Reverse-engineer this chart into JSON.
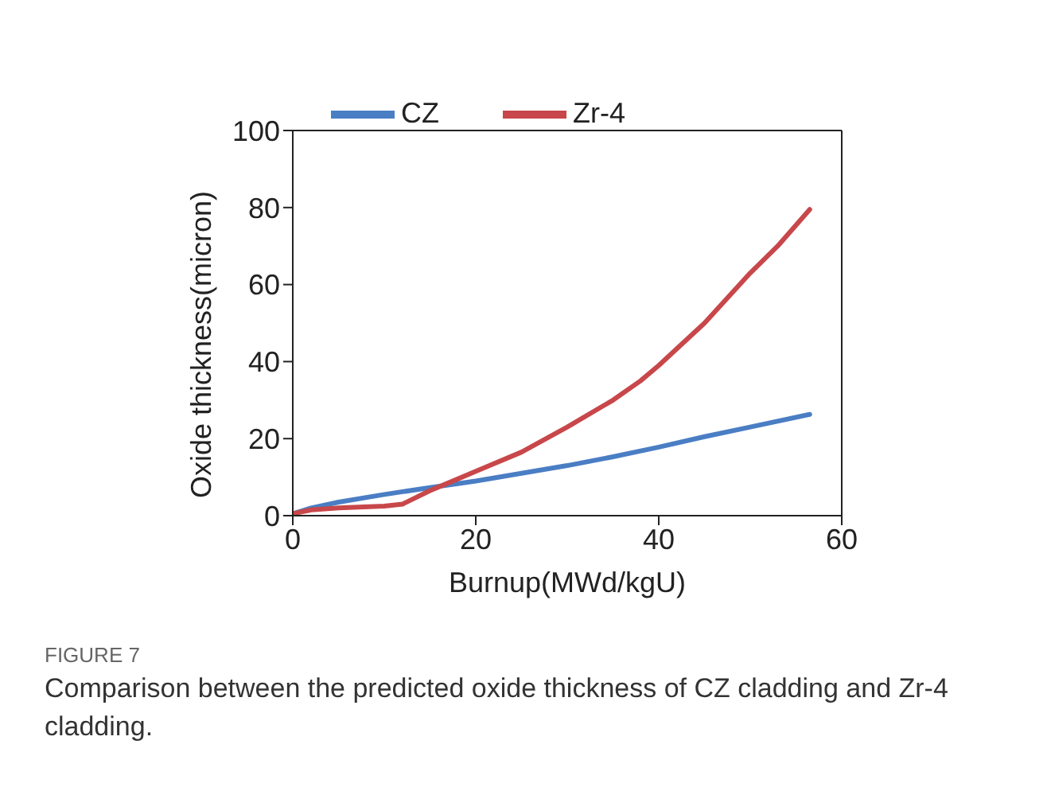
{
  "chart_data": {
    "type": "line",
    "title": "FIGURE 7",
    "subtitle": "Comparison between the predicted oxide thickness of CZ cladding and Zr-4 cladding.",
    "xlabel": "Burnup(MWd/kgU)",
    "ylabel": "Oxide thickness(micron)",
    "xlim": [
      0,
      60
    ],
    "xticks": [
      0,
      20,
      40,
      60
    ],
    "ylim": [
      0,
      100
    ],
    "yticks": [
      0,
      20,
      40,
      60,
      80,
      100
    ],
    "legend": "top left",
    "marker": "none",
    "line_style": "solid",
    "series": [
      {
        "name": "CZ",
        "color": "#4a7ec4",
        "x": [
          0,
          2,
          5,
          10,
          15,
          20,
          25,
          30,
          35,
          40,
          45,
          50,
          56.5
        ],
        "values": [
          0.5,
          2,
          3.5,
          5.5,
          7.3,
          9,
          11,
          13,
          15.3,
          17.8,
          20.5,
          23,
          26.3
        ]
      },
      {
        "name": "Zr-4",
        "color": "#c8474a",
        "x": [
          0,
          2,
          5,
          10,
          12,
          15,
          17,
          20,
          25,
          30,
          35,
          38,
          40,
          45,
          50,
          53,
          56.5
        ],
        "values": [
          0.5,
          1.5,
          2,
          2.5,
          3,
          6.5,
          8.5,
          11.5,
          16.5,
          23,
          30,
          35,
          39,
          50,
          63,
          70,
          79.5
        ]
      }
    ]
  }
}
